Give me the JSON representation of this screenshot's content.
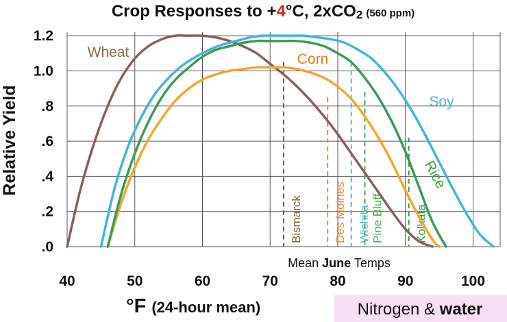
{
  "chart_data": {
    "type": "line",
    "title": {
      "prefix": "Crop Responses to +",
      "highlight": "4",
      "highlight_color": "#e0201c",
      "suffix_before_sub": "°C, 2xCO",
      "subscript": "2",
      "note": "(560 ppm)"
    },
    "ylabel": "Relative Yield",
    "xlabel": {
      "main": "°F",
      "sub": "(24-hour mean)"
    },
    "xlim": [
      40,
      104
    ],
    "ylim": [
      0,
      1.22
    ],
    "x_ticks": [
      40,
      50,
      60,
      70,
      80,
      90,
      100
    ],
    "x_tick_labels": [
      "40",
      "50",
      "60",
      "70",
      "80",
      "90",
      "100"
    ],
    "y_ticks": [
      0,
      0.2,
      0.4,
      0.6,
      0.8,
      1.0,
      1.2
    ],
    "y_tick_labels": [
      ".0",
      ".2",
      ".4",
      ".6",
      ".8",
      "1.0",
      "1.2"
    ],
    "grid": true,
    "series": [
      {
        "name": "Wheat",
        "color": "#8a5e5e",
        "label_color": "#8b6a44",
        "x": [
          40,
          42,
          44,
          46,
          48,
          50,
          52,
          54,
          56,
          58,
          60,
          62,
          64,
          66,
          68,
          70,
          72,
          74,
          76,
          78,
          80,
          82,
          84,
          86,
          88,
          90,
          92,
          94
        ],
        "y": [
          0.0,
          0.33,
          0.59,
          0.8,
          0.96,
          1.07,
          1.14,
          1.18,
          1.2,
          1.2,
          1.2,
          1.19,
          1.17,
          1.14,
          1.1,
          1.04,
          0.98,
          0.91,
          0.83,
          0.74,
          0.64,
          0.53,
          0.42,
          0.31,
          0.2,
          0.1,
          0.03,
          0.0
        ]
      },
      {
        "name": "Corn",
        "color": "#f0a830",
        "label_color": "#e07e20",
        "x": [
          46,
          48,
          50,
          52,
          54,
          56,
          58,
          60,
          62,
          64,
          66,
          68,
          70,
          72,
          74,
          76,
          78,
          80,
          82,
          84,
          86,
          88,
          90,
          92,
          94,
          95
        ],
        "y": [
          0.0,
          0.25,
          0.45,
          0.61,
          0.73,
          0.83,
          0.9,
          0.95,
          0.98,
          1.0,
          1.01,
          1.02,
          1.02,
          1.02,
          1.01,
          0.99,
          0.96,
          0.91,
          0.84,
          0.74,
          0.62,
          0.48,
          0.32,
          0.17,
          0.04,
          0.0
        ]
      },
      {
        "name": "Rice",
        "color": "#3a9a5a",
        "label_color": "#3aa040",
        "x": [
          46,
          48,
          50,
          52,
          54,
          56,
          58,
          60,
          62,
          64,
          66,
          68,
          70,
          72,
          74,
          76,
          78,
          80,
          82,
          84,
          86,
          88,
          90,
          92,
          94,
          96
        ],
        "y": [
          0.0,
          0.3,
          0.53,
          0.71,
          0.85,
          0.95,
          1.02,
          1.08,
          1.12,
          1.14,
          1.16,
          1.17,
          1.17,
          1.17,
          1.17,
          1.16,
          1.14,
          1.1,
          1.05,
          0.96,
          0.85,
          0.71,
          0.54,
          0.34,
          0.14,
          0.0
        ]
      },
      {
        "name": "Soy",
        "color": "#45b4d8",
        "label_color": "#45b4d8",
        "x": [
          45,
          47,
          49,
          51,
          53,
          55,
          57,
          59,
          61,
          63,
          65,
          67,
          69,
          71,
          73,
          75,
          77,
          79,
          81,
          83,
          85,
          87,
          89,
          91,
          93,
          95,
          97,
          99,
          101,
          103
        ],
        "y": [
          0.0,
          0.33,
          0.57,
          0.74,
          0.87,
          0.96,
          1.03,
          1.08,
          1.12,
          1.15,
          1.17,
          1.19,
          1.2,
          1.2,
          1.2,
          1.2,
          1.19,
          1.18,
          1.16,
          1.12,
          1.07,
          0.99,
          0.89,
          0.77,
          0.63,
          0.48,
          0.33,
          0.19,
          0.07,
          0.0
        ]
      }
    ],
    "series_label_positions": {
      "Wheat": [
        43,
        1.08
      ],
      "Corn": [
        74,
        1.04
      ],
      "Rice": [
        92.8,
        0.47
      ],
      "Soy": [
        93.5,
        0.8
      ]
    },
    "cities": [
      {
        "name": "Bismarck",
        "x": 72,
        "top": 1.05,
        "color": "#7d6032"
      },
      {
        "name": "Des Moines",
        "x": 78.5,
        "top": 0.85,
        "color": "#e8883a"
      },
      {
        "name": "Wichita",
        "x": 82,
        "top": 1.05,
        "color": "#56b8d4"
      },
      {
        "name": "Pine Bluff",
        "x": 84,
        "top": 0.88,
        "color": "#3eb24a"
      },
      {
        "name": "Kolkata",
        "x": 90.5,
        "top": 0.62,
        "color": "#2f9a3a"
      }
    ],
    "mean_june_label": {
      "pre": "Mean ",
      "bold": "June",
      "post": " Temps"
    }
  },
  "footnote": {
    "pre": "Nitrogen & ",
    "bold": "water",
    "bg": "#f8e0f4"
  }
}
